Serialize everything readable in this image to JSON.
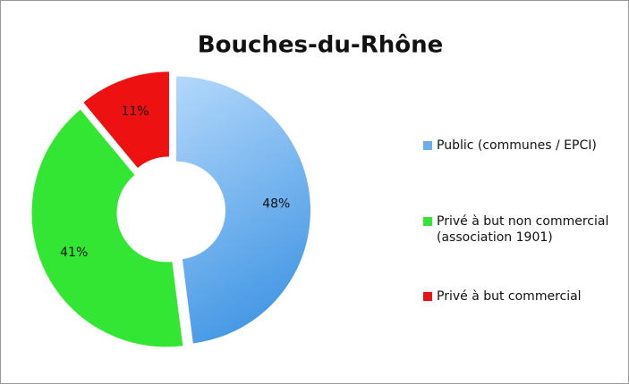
{
  "chart_data": {
    "type": "doughnut",
    "title": "Bouches-du-Rhône",
    "categories": [
      "Public (communes / EPCI)",
      "Privé à but non commercial (association 1901)",
      "Privé à but commercial"
    ],
    "values": [
      48,
      41,
      11
    ],
    "value_labels": [
      "48%",
      "41%",
      "11%"
    ],
    "colors": [
      "#6aaeee",
      "#33e633",
      "#ee1111"
    ],
    "legend": "right"
  }
}
